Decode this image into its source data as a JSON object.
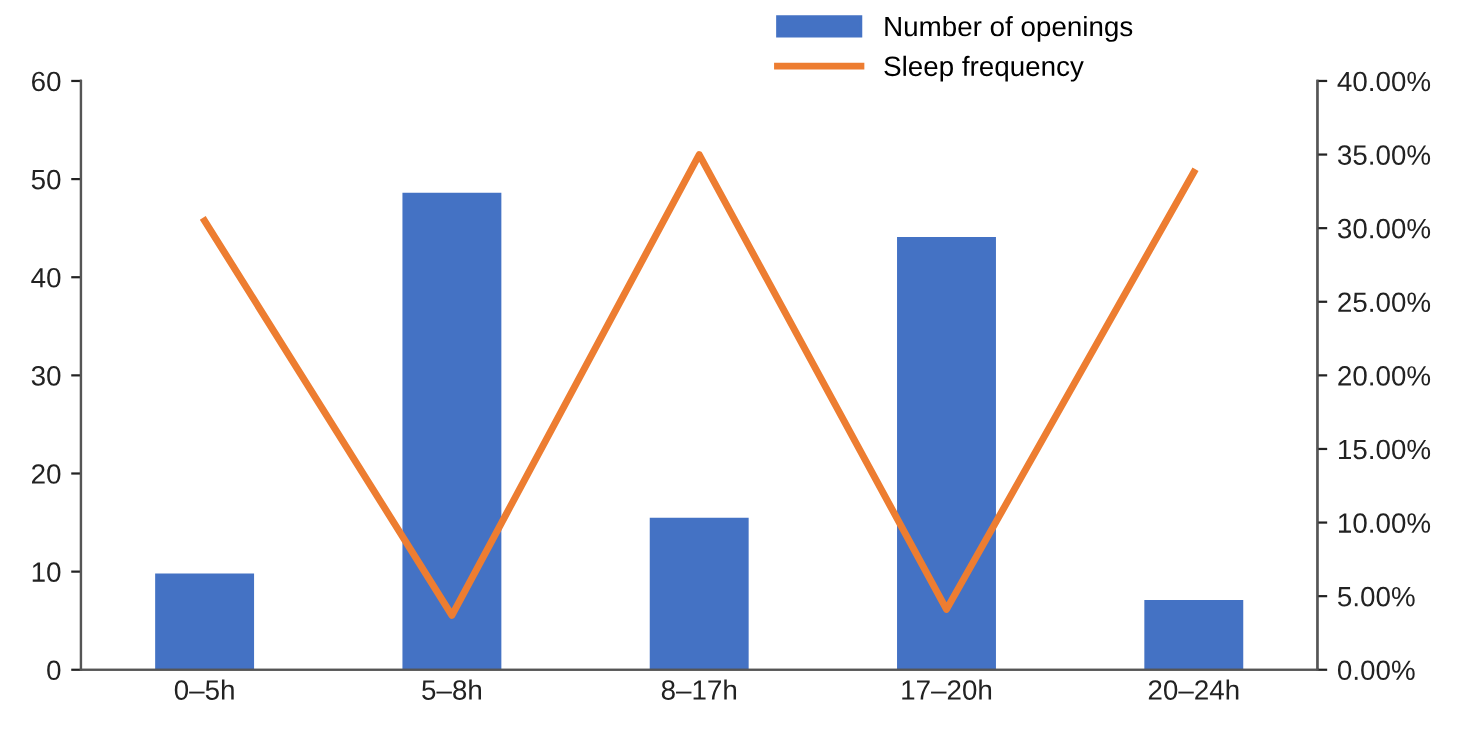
{
  "chart_data": {
    "type": "bar",
    "categories": [
      "0–5h",
      "5–8h",
      "8–17h",
      "17–20h",
      "20–24h"
    ],
    "series": [
      {
        "name": "Number of openings",
        "color": "#4472c4",
        "values": [
          9.8,
          48.6,
          15.5,
          44.1,
          7.1
        ]
      },
      {
        "name": "Sleep frequency",
        "type": "line",
        "axis": "y2",
        "color": "#ed7d31",
        "values": [
          30.5,
          3.7,
          35.0,
          4.1,
          33.8
        ]
      }
    ],
    "ylim": [
      0,
      60
    ],
    "yticks": [
      0,
      10,
      20,
      30,
      40,
      50,
      60
    ],
    "y2lim": [
      0,
      40
    ],
    "y2ticks": [
      {
        "value": 0,
        "label": "0.00%"
      },
      {
        "value": 5,
        "label": "5.00%"
      },
      {
        "value": 10,
        "label": "10.00%"
      },
      {
        "value": 15,
        "label": "15.00%"
      },
      {
        "value": 20,
        "label": "20.00%"
      },
      {
        "value": 25,
        "label": "25.00%"
      },
      {
        "value": 30,
        "label": "30.00%"
      },
      {
        "value": 35,
        "label": "35.00%"
      },
      {
        "value": 40,
        "label": "40.00%"
      }
    ],
    "grid": false,
    "legend": "top right",
    "marker": "none",
    "line_style": "solid"
  }
}
